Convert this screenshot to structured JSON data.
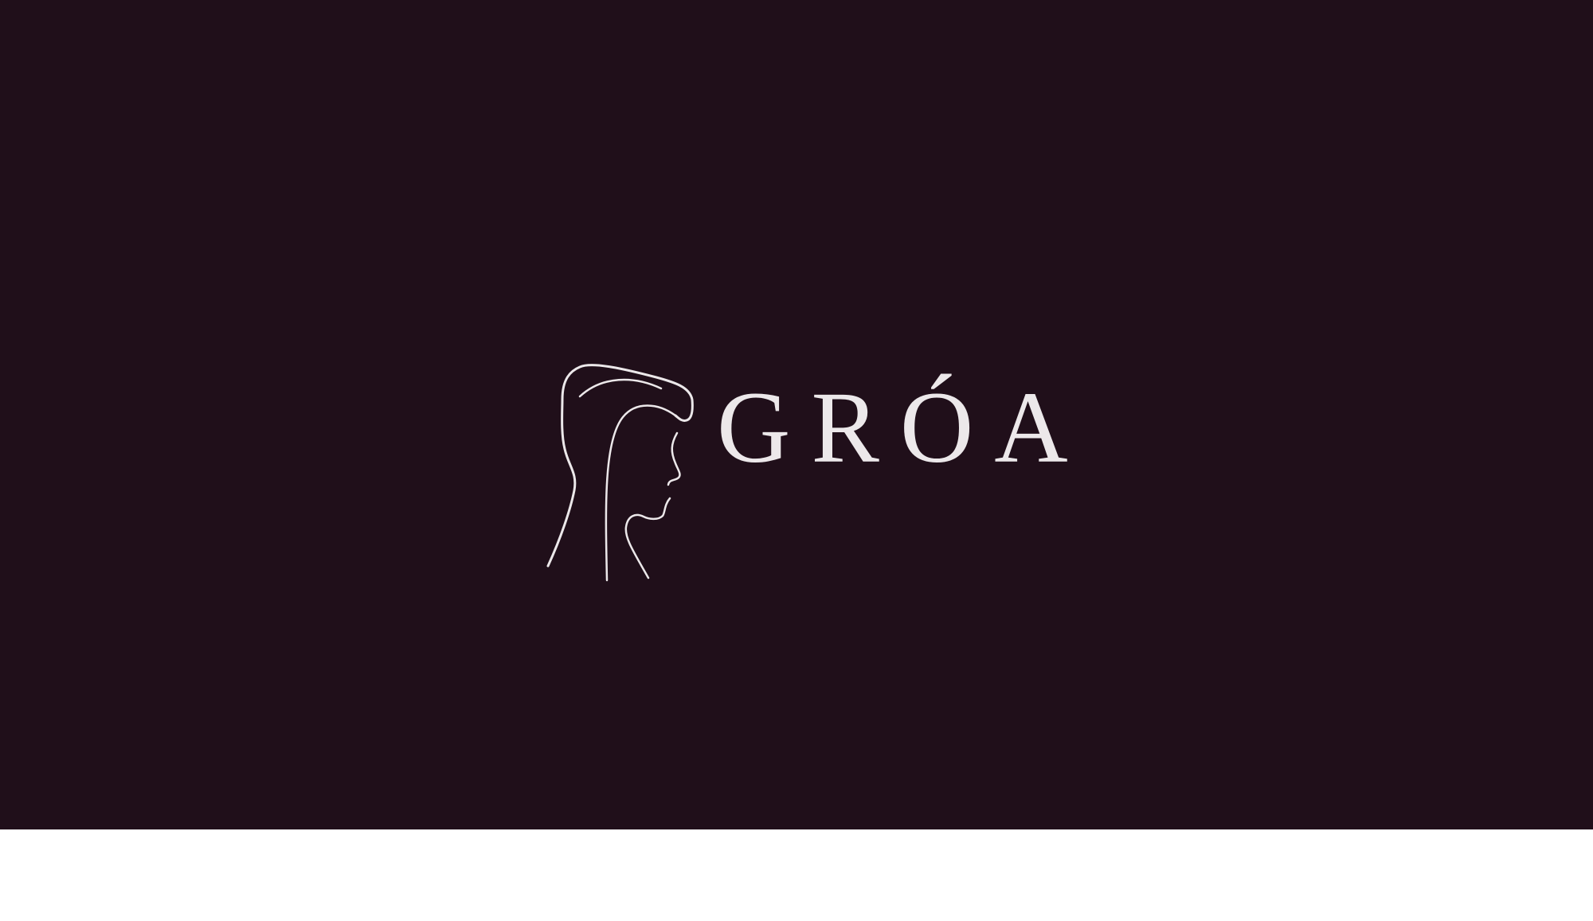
{
  "brand": {
    "wordmark": "GRÓA",
    "logo_icon": "woman-profile-line-art-icon"
  },
  "colors": {
    "background": "#200f1a",
    "logo": "#ece8ea",
    "bottom_strip": "#ffffff"
  }
}
